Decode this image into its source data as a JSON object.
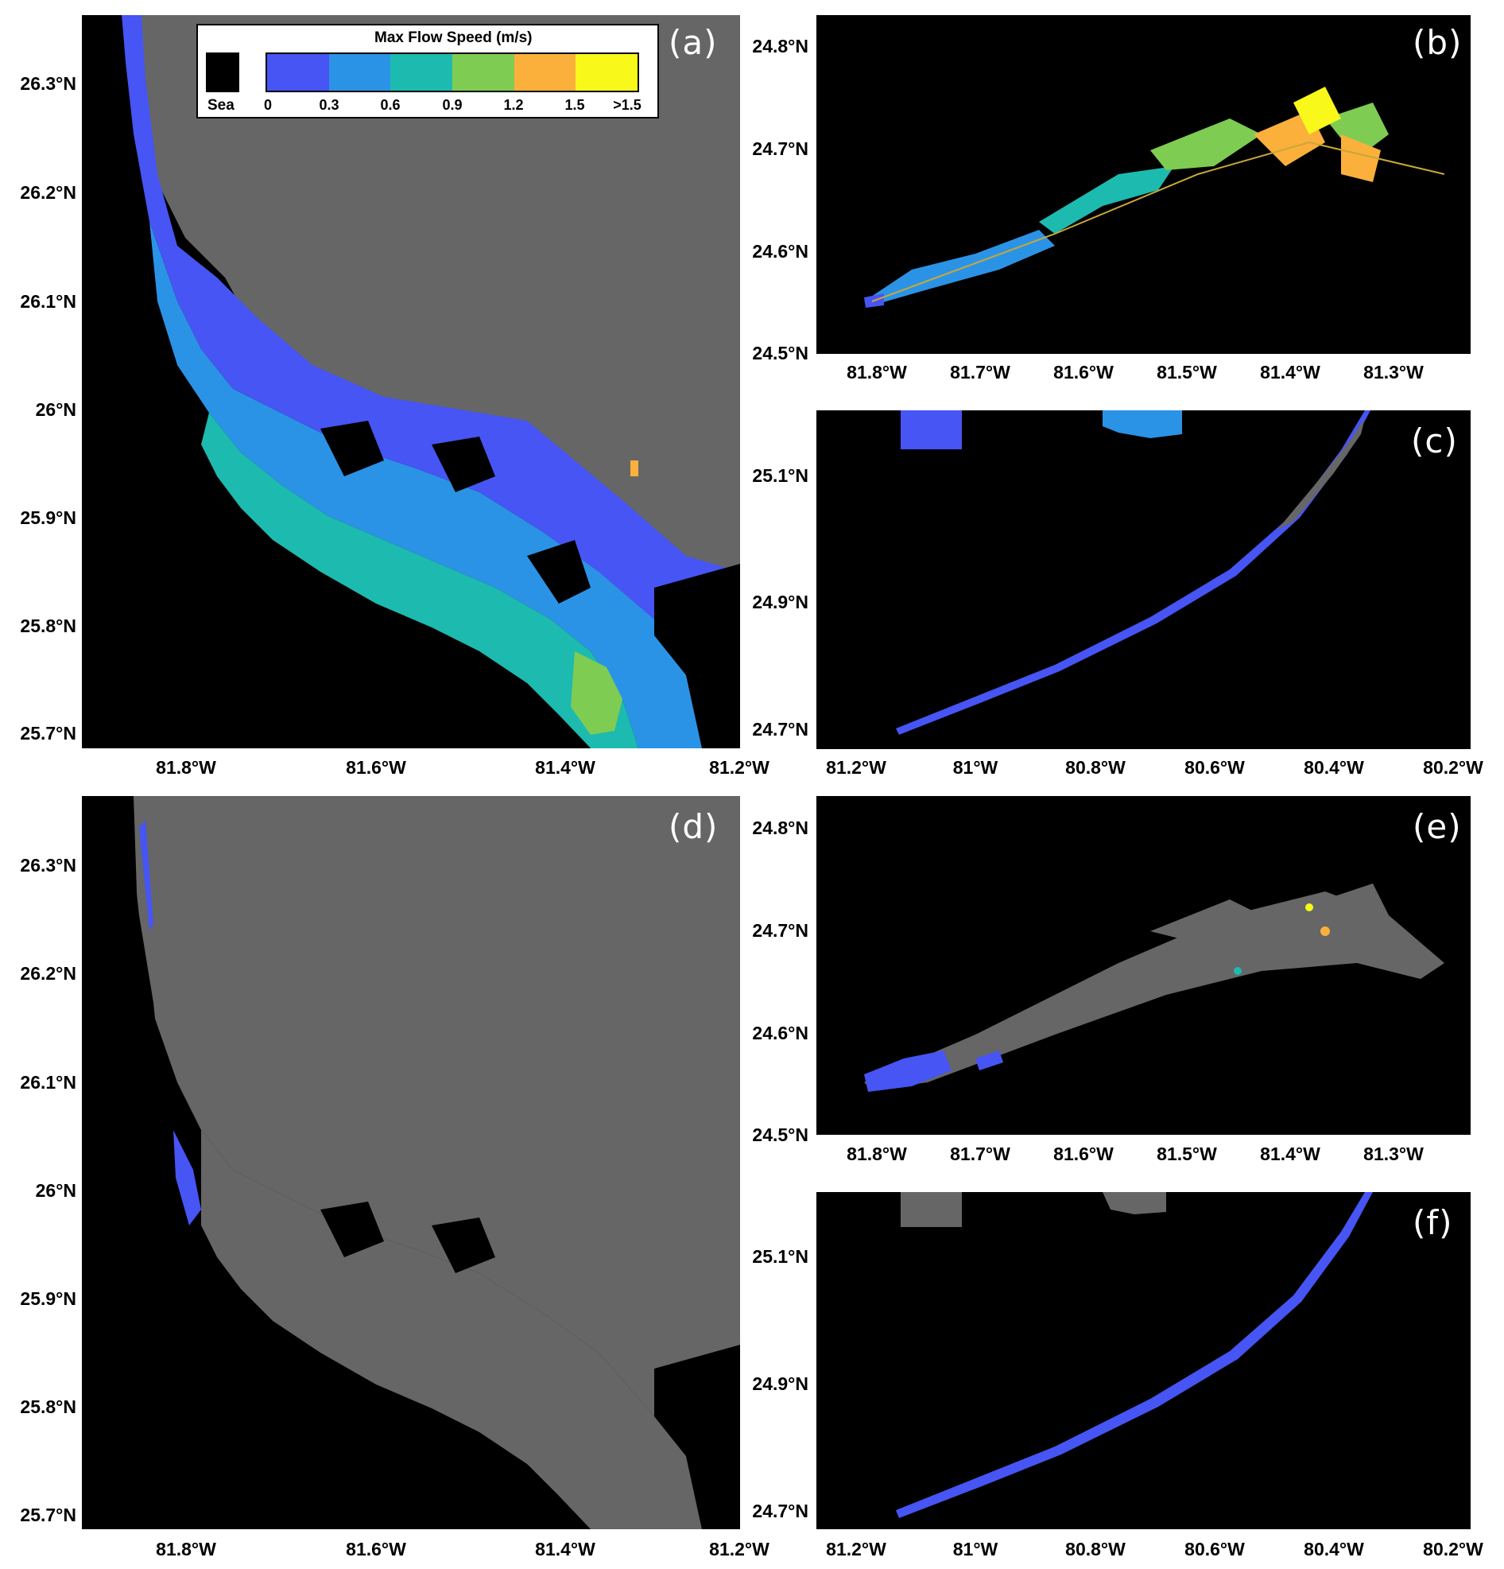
{
  "legend": {
    "title": "Max Flow Speed (m/s)",
    "sea_label": "Sea",
    "sea_color": "#000000",
    "bins": [
      {
        "color": "#4655f3"
      },
      {
        "color": "#2b93e6"
      },
      {
        "color": "#1dbab0"
      },
      {
        "color": "#7fcc52"
      },
      {
        "color": "#fbb03b"
      },
      {
        "color": "#f8f81a"
      }
    ],
    "labels": [
      "0",
      "0.3",
      "0.6",
      "0.9",
      "1.2",
      "1.5",
      ">1.5"
    ]
  },
  "colors": {
    "land": "#666666",
    "sea": "#000000"
  },
  "panels": {
    "a": {
      "label": "(a)",
      "yticks": [
        "26.3°N",
        "26.2°N",
        "26.1°N",
        "26°N",
        "25.9°N",
        "25.8°N",
        "25.7°N"
      ],
      "xticks": [
        "81.8°W",
        "81.6°W",
        "81.4°W",
        "81.2°W"
      ]
    },
    "b": {
      "label": "(b)",
      "yticks": [
        "24.8°N",
        "24.7°N",
        "24.6°N",
        "24.5°N"
      ],
      "xticks": [
        "81.8°W",
        "81.7°W",
        "81.6°W",
        "81.5°W",
        "81.4°W",
        "81.3°W"
      ]
    },
    "c": {
      "label": "(c)",
      "yticks": [
        "25.1°N",
        "24.9°N",
        "24.7°N"
      ],
      "xticks": [
        "81.2°W",
        "81°W",
        "80.8°W",
        "80.6°W",
        "80.4°W",
        "80.2°W"
      ]
    },
    "d": {
      "label": "(d)",
      "yticks": [
        "26.3°N",
        "26.2°N",
        "26.1°N",
        "26°N",
        "25.9°N",
        "25.8°N",
        "25.7°N"
      ],
      "xticks": [
        "81.8°W",
        "81.6°W",
        "81.4°W",
        "81.2°W"
      ]
    },
    "e": {
      "label": "(e)",
      "yticks": [
        "24.8°N",
        "24.7°N",
        "24.6°N",
        "24.5°N"
      ],
      "xticks": [
        "81.8°W",
        "81.7°W",
        "81.6°W",
        "81.5°W",
        "81.4°W",
        "81.3°W"
      ]
    },
    "f": {
      "label": "(f)",
      "yticks": [
        "25.1°N",
        "24.9°N",
        "24.7°N"
      ],
      "xticks": [
        "81.2°W",
        "81°W",
        "80.8°W",
        "80.6°W",
        "80.4°W",
        "80.2°W"
      ]
    }
  }
}
